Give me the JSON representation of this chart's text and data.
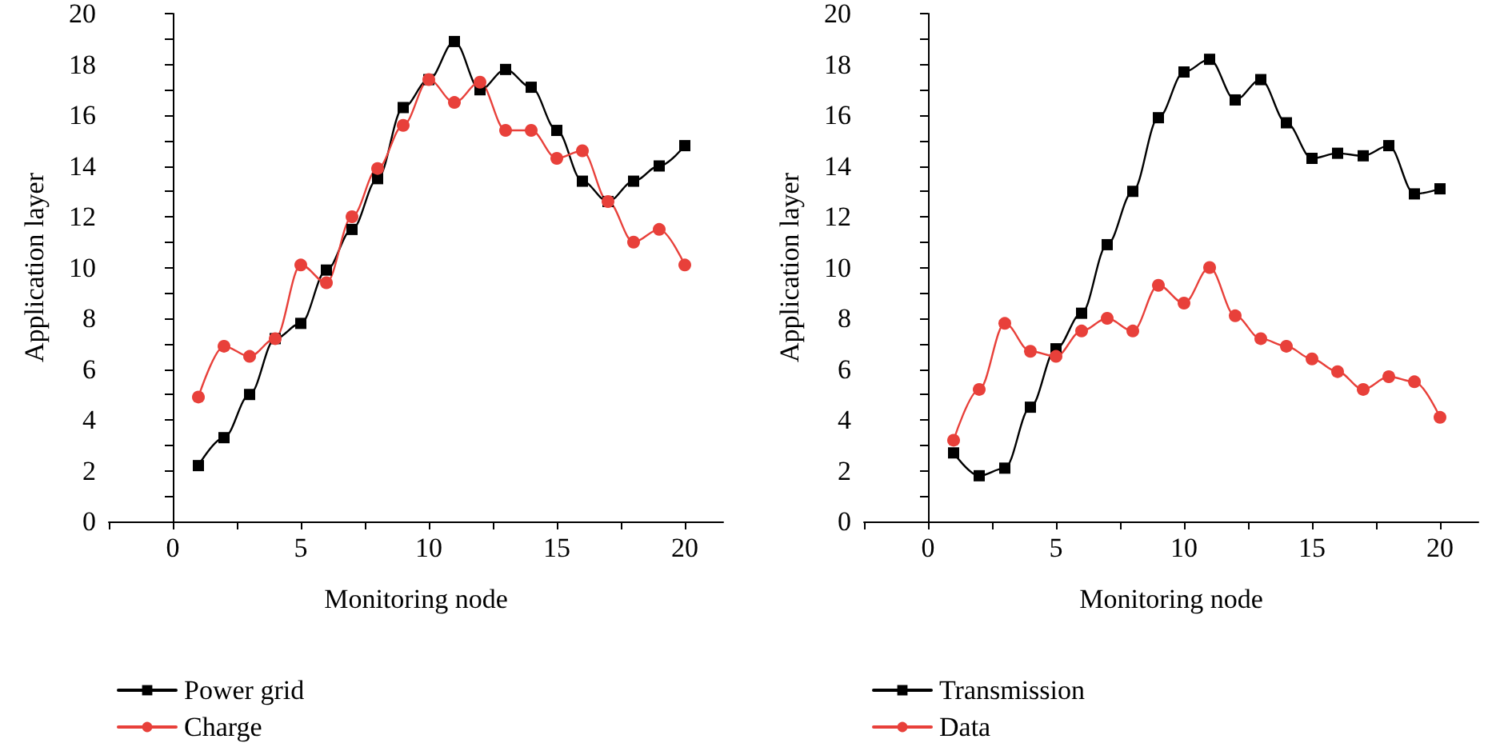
{
  "chart_data": [
    {
      "type": "line",
      "xlabel": "Monitoring node",
      "ylabel": "Application layer",
      "x": [
        1,
        2,
        3,
        4,
        5,
        6,
        7,
        8,
        9,
        10,
        11,
        12,
        13,
        14,
        15,
        16,
        17,
        18,
        19,
        20
      ],
      "xlim": [
        -2.5,
        21.5
      ],
      "xticks": [
        {
          "value": -2.5,
          "label": null
        },
        0,
        {
          "value": 2.5,
          "label": null
        },
        5,
        {
          "value": 7.5,
          "label": null
        },
        10,
        {
          "value": 12.5,
          "label": null
        },
        15,
        {
          "value": 17.5,
          "label": null
        },
        20
      ],
      "ylim": [
        0,
        20
      ],
      "yticks": [
        0,
        {
          "value": 1,
          "label": null
        },
        2,
        {
          "value": 3,
          "label": null
        },
        4,
        {
          "value": 5,
          "label": null
        },
        6,
        {
          "value": 7,
          "label": null
        },
        8,
        {
          "value": 9,
          "label": null
        },
        10,
        {
          "value": 11,
          "label": null
        },
        12,
        {
          "value": 13,
          "label": null
        },
        14,
        {
          "value": 15,
          "label": null
        },
        16,
        {
          "value": 17,
          "label": null
        },
        18,
        {
          "value": 19,
          "label": null
        },
        20
      ],
      "legend": "bottom left",
      "line_style": "solid",
      "series": [
        {
          "name": "Power grid",
          "color": "#000000",
          "marker": "square",
          "values": [
            2.2,
            3.3,
            5.0,
            7.2,
            7.8,
            9.9,
            11.5,
            13.5,
            16.3,
            17.4,
            18.9,
            17.0,
            17.8,
            17.1,
            15.4,
            13.4,
            12.6,
            13.4,
            14.0,
            14.8
          ]
        },
        {
          "name": "Charge",
          "color": "#e8403a",
          "marker": "circle",
          "values": [
            4.9,
            6.9,
            6.5,
            7.2,
            10.1,
            9.4,
            12.0,
            13.9,
            15.6,
            17.4,
            16.5,
            17.3,
            15.4,
            15.4,
            14.3,
            14.6,
            12.6,
            11.0,
            11.5,
            10.1
          ]
        }
      ]
    },
    {
      "type": "line",
      "xlabel": "Monitoring node",
      "ylabel": "Application layer",
      "x": [
        1,
        2,
        3,
        4,
        5,
        6,
        7,
        8,
        9,
        10,
        11,
        12,
        13,
        14,
        15,
        16,
        17,
        18,
        19,
        20
      ],
      "xlim": [
        -2.5,
        21.5
      ],
      "xticks": [
        {
          "value": -2.5,
          "label": null
        },
        0,
        {
          "value": 2.5,
          "label": null
        },
        5,
        {
          "value": 7.5,
          "label": null
        },
        10,
        {
          "value": 12.5,
          "label": null
        },
        15,
        {
          "value": 17.5,
          "label": null
        },
        20
      ],
      "ylim": [
        0,
        20
      ],
      "yticks": [
        0,
        {
          "value": 1,
          "label": null
        },
        2,
        {
          "value": 3,
          "label": null
        },
        4,
        {
          "value": 5,
          "label": null
        },
        6,
        {
          "value": 7,
          "label": null
        },
        8,
        {
          "value": 9,
          "label": null
        },
        10,
        {
          "value": 11,
          "label": null
        },
        12,
        {
          "value": 13,
          "label": null
        },
        14,
        {
          "value": 15,
          "label": null
        },
        16,
        {
          "value": 17,
          "label": null
        },
        18,
        {
          "value": 19,
          "label": null
        },
        20
      ],
      "legend": "bottom left",
      "line_style": "solid",
      "series": [
        {
          "name": "Transmission",
          "color": "#000000",
          "marker": "square",
          "values": [
            2.7,
            1.8,
            2.1,
            4.5,
            6.8,
            8.2,
            10.9,
            13.0,
            15.9,
            17.7,
            18.2,
            16.6,
            17.4,
            15.7,
            14.3,
            14.5,
            14.4,
            14.8,
            12.9,
            13.1
          ]
        },
        {
          "name": "Data",
          "color": "#e8403a",
          "marker": "circle",
          "values": [
            3.2,
            5.2,
            7.8,
            6.7,
            6.5,
            7.5,
            8.0,
            7.5,
            9.3,
            8.6,
            10.0,
            8.1,
            7.2,
            6.9,
            6.4,
            5.9,
            5.2,
            5.7,
            5.5,
            4.1
          ]
        }
      ]
    }
  ]
}
